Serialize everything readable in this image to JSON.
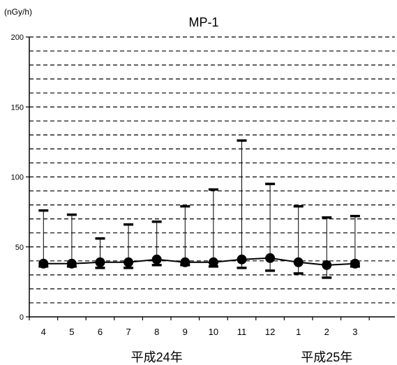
{
  "chart_data": {
    "type": "line",
    "title": "MP-1",
    "ylabel": "(nGy/h)",
    "xlabel": "",
    "ylim": [
      0,
      200
    ],
    "yticks": [
      0,
      50,
      100,
      150,
      200
    ],
    "grid": true,
    "grid_step": 10,
    "categories": [
      "4",
      "5",
      "6",
      "7",
      "8",
      "9",
      "10",
      "11",
      "12",
      "1",
      "2",
      "3"
    ],
    "year_labels": [
      {
        "text": "平成24年",
        "category": "8"
      },
      {
        "text": "平成25年",
        "category": "2"
      }
    ],
    "series": [
      {
        "values": [
          38,
          38,
          39,
          39,
          41,
          39,
          39,
          41,
          42,
          39,
          37,
          38
        ],
        "max": [
          76,
          73,
          56,
          66,
          68,
          79,
          91,
          126,
          95,
          79,
          71,
          72
        ],
        "min": [
          36,
          36,
          35,
          35,
          37,
          37,
          36,
          35,
          33,
          31,
          28,
          36
        ]
      }
    ]
  }
}
